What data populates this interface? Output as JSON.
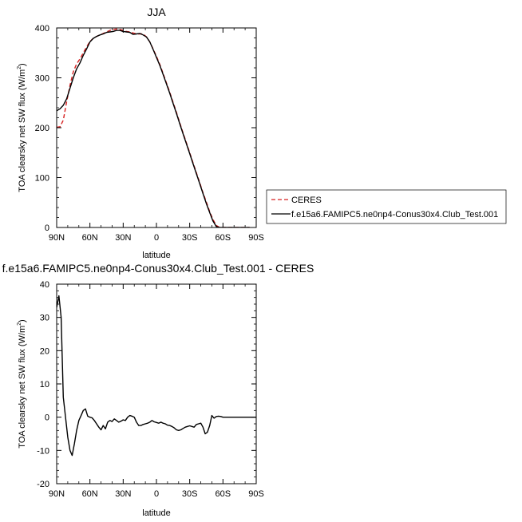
{
  "colors": {
    "ceres": "#d62020",
    "model": "#000000"
  },
  "chart_data": [
    {
      "type": "line",
      "title": "JJA",
      "xlabel": "latitude",
      "ylabel": "TOA clearsky net SW flux (W/m",
      "ylabel_sup": "2",
      "ylabel_close": ")",
      "xlim": [
        90,
        -90
      ],
      "ylim": [
        0,
        400
      ],
      "xticks": [
        90,
        60,
        30,
        0,
        -30,
        -60,
        -90
      ],
      "xtick_labels": [
        "90N",
        "60N",
        "30N",
        "0",
        "30S",
        "60S",
        "90S"
      ],
      "yticks": [
        0,
        100,
        200,
        300,
        400
      ],
      "ytick_labels": [
        "0",
        "100",
        "200",
        "300",
        "400"
      ],
      "legend": "right",
      "series": [
        {
          "name": "CERES",
          "style": "dashed",
          "x": [
            90,
            87,
            84,
            81,
            78,
            75,
            72,
            69,
            66,
            63,
            60,
            57,
            54,
            51,
            48,
            45,
            42,
            39,
            36,
            33,
            30,
            27,
            24,
            21,
            18,
            15,
            12,
            9,
            6,
            3,
            0,
            -3,
            -6,
            -9,
            -12,
            -15,
            -18,
            -21,
            -24,
            -27,
            -30,
            -33,
            -36,
            -39,
            -42,
            -45,
            -48,
            -51,
            -54,
            -57,
            -60,
            -63,
            -66,
            -69,
            -72,
            -75,
            -78,
            -81,
            -84
          ],
          "values": [
            201,
            202,
            215,
            252,
            285,
            312,
            328,
            338,
            350,
            362,
            373,
            379,
            383,
            386,
            389,
            392,
            395,
            397,
            398,
            397,
            395,
            393,
            392,
            390,
            388,
            388,
            388,
            382,
            372,
            358,
            343,
            327,
            309,
            290,
            271,
            251,
            231,
            210,
            190,
            170,
            150,
            130,
            110,
            90,
            70,
            51,
            32,
            16,
            4,
            0,
            0,
            0,
            0,
            0,
            0,
            0,
            0,
            0,
            0
          ]
        },
        {
          "name": "f.e15a6.FAMIPC5.ne0np4-Conus30x4.Club_Test.001",
          "style": "solid",
          "x": [
            90,
            87,
            84,
            81,
            78,
            75,
            72,
            69,
            66,
            63,
            60,
            57,
            54,
            51,
            48,
            45,
            42,
            39,
            36,
            33,
            30,
            27,
            24,
            21,
            18,
            15,
            12,
            9,
            6,
            3,
            0,
            -3,
            -6,
            -9,
            -12,
            -15,
            -18,
            -21,
            -24,
            -27,
            -30,
            -33,
            -36,
            -39,
            -42,
            -45,
            -48,
            -51,
            -54,
            -57,
            -60,
            -63,
            -66,
            -69,
            -72,
            -75,
            -78,
            -81,
            -84
          ],
          "values": [
            234,
            238,
            245,
            258,
            279,
            300,
            318,
            330,
            345,
            358,
            372,
            379,
            383,
            386,
            388,
            391,
            392,
            393,
            395,
            395,
            393,
            392,
            391,
            387,
            388,
            389,
            386,
            382,
            372,
            357,
            341,
            325,
            307,
            288,
            269,
            249,
            229,
            208,
            188,
            168,
            148,
            128,
            108,
            88,
            68,
            48,
            30,
            13,
            2,
            0,
            0,
            0,
            0,
            0,
            0,
            0,
            0,
            0,
            0
          ]
        }
      ]
    },
    {
      "type": "line",
      "title": "f.e15a6.FAMIPC5.ne0np4-Conus30x4.Club_Test.001 - CERES",
      "xlabel": "latitude",
      "ylabel": "TOA clearsky net SW flux (W/m",
      "ylabel_sup": "2",
      "ylabel_close": ")",
      "xlim": [
        90,
        -90
      ],
      "ylim": [
        -20,
        40
      ],
      "xticks": [
        90,
        60,
        30,
        0,
        -30,
        -60,
        -90
      ],
      "xtick_labels": [
        "90N",
        "60N",
        "30N",
        "0",
        "30S",
        "60S",
        "90S"
      ],
      "yticks": [
        -20,
        -10,
        0,
        10,
        20,
        30,
        40
      ],
      "ytick_labels": [
        "-20",
        "-10",
        "0",
        "10",
        "20",
        "30",
        "40"
      ],
      "series": [
        {
          "style": "solid",
          "x": [
            90,
            88,
            86,
            84,
            82,
            80,
            78,
            76,
            74,
            72,
            70,
            68,
            66,
            64,
            62,
            60,
            58,
            56,
            54,
            52,
            50,
            48,
            46,
            44,
            42,
            40,
            38,
            36,
            34,
            32,
            30,
            28,
            26,
            24,
            22,
            20,
            18,
            16,
            14,
            12,
            10,
            8,
            6,
            4,
            2,
            0,
            -2,
            -4,
            -6,
            -8,
            -10,
            -12,
            -14,
            -16,
            -18,
            -20,
            -22,
            -24,
            -26,
            -28,
            -30,
            -32,
            -34,
            -36,
            -38,
            -40,
            -42,
            -44,
            -46,
            -48,
            -50,
            -52,
            -54,
            -56,
            -58,
            -60,
            -62,
            -64,
            -66,
            -68,
            -70,
            -72,
            -74,
            -76,
            -78,
            -80,
            -82,
            -84,
            -86,
            -88,
            -90
          ],
          "values": [
            33,
            36.5,
            30,
            6,
            0,
            -6,
            -10,
            -11.5,
            -8,
            -4,
            -1,
            0.5,
            2,
            2.5,
            0.3,
            0,
            -0.2,
            -1,
            -2,
            -3,
            -3.8,
            -2.5,
            -3.5,
            -1.5,
            -1,
            -1.3,
            -0.5,
            -1,
            -1.5,
            -1.2,
            -0.8,
            -1,
            0,
            0.5,
            0.3,
            0,
            -1.5,
            -2.5,
            -2.5,
            -2.2,
            -2,
            -1.8,
            -1.5,
            -1,
            -1.4,
            -1.6,
            -1.8,
            -1.5,
            -1.8,
            -2,
            -2.4,
            -2.5,
            -2.8,
            -3.2,
            -3.8,
            -4,
            -3.8,
            -3.4,
            -3,
            -2.8,
            -2.6,
            -2.8,
            -3,
            -2.2,
            -2,
            -1.8,
            -3,
            -5,
            -4.5,
            -2.5,
            0.5,
            -0.3,
            0.2,
            0.3,
            0.2,
            0,
            0,
            0,
            0,
            0,
            0,
            0,
            0,
            0,
            0,
            0,
            0,
            0,
            0,
            0,
            0
          ]
        }
      ]
    }
  ]
}
